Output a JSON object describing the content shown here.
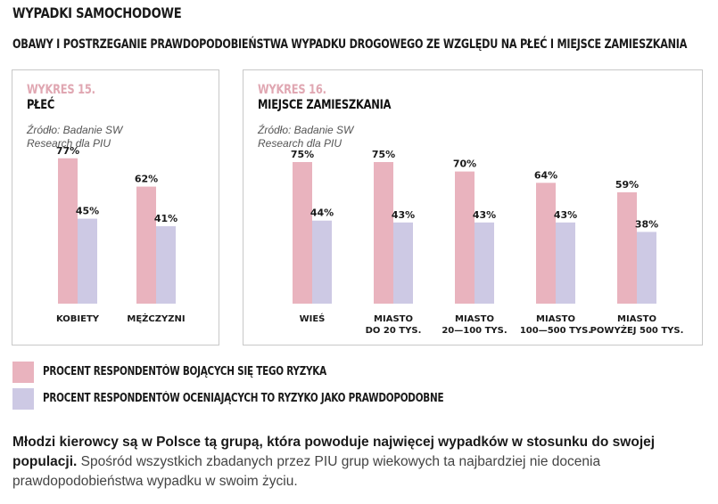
{
  "section_title": "WYPADKI SAMOCHODOWE",
  "main_title": "OBAWY I POSTRZEGANIE PRAWDOPODOBIEŃSTWA WYPADKU DROGOWEGO ZE WZGLĘDU NA PŁEĆ I MIEJSCE ZAMIESZKANIA",
  "colors": {
    "fear": "#e9b3be",
    "likely": "#cdc9e4",
    "accent": "#e0a7b2"
  },
  "legend": [
    {
      "label": "PROCENT RESPONDENTÓW BOJĄCYCH SIĘ TEGO RYZYKA",
      "color": "#e9b3be"
    },
    {
      "label": "PROCENT RESPONDENTÓW OCENIAJĄCYCH TO RYZYKO JAKO PRAWDOPODOBNE",
      "color": "#cdc9e4"
    }
  ],
  "chart_data": [
    {
      "type": "bar",
      "label": "WYKRES 15.",
      "title": "PŁEĆ",
      "source": [
        "Źródło: Badanie SW",
        "Research dla PIU"
      ],
      "categories": [
        [
          "KOBIETY"
        ],
        [
          "MĘŻCZYZNI"
        ]
      ],
      "series": [
        {
          "values": [
            77,
            62
          ],
          "labels": [
            "77%",
            "62%"
          ]
        },
        {
          "values": [
            45,
            41
          ],
          "labels": [
            "45%",
            "41%"
          ]
        }
      ]
    },
    {
      "type": "bar",
      "label": "WYKRES 16.",
      "title": "MIEJSCE ZAMIESZKANIA",
      "source": [
        "Źródło: Badanie SW",
        "Research dla PIU"
      ],
      "categories": [
        [
          "WIEŚ"
        ],
        [
          "MIASTO",
          "DO 20 TYS."
        ],
        [
          "MIASTO",
          "20—100 TYS."
        ],
        [
          "MIASTO",
          "100—500 TYS."
        ],
        [
          "MIASTO",
          "POWYŻEJ 500 TYS."
        ]
      ],
      "series": [
        {
          "values": [
            75,
            75,
            70,
            64,
            59
          ],
          "labels": [
            "75%",
            "75%",
            "70%",
            "64%",
            "59%"
          ]
        },
        {
          "values": [
            44,
            43,
            43,
            43,
            38
          ],
          "labels": [
            "44%",
            "43%",
            "43%",
            "43%",
            "38%"
          ]
        }
      ]
    }
  ],
  "body": {
    "bold": "Młodzi kierowcy są w Polsce tą grupą, która powoduje najwięcej wypadków w stosunku do swojej populacji.",
    "regular": "Spośród wszystkich zbadanych przez PIU grup wiekowych ta najbardziej nie docenia prawdopodobieństwa wypadku w swoim życiu."
  }
}
